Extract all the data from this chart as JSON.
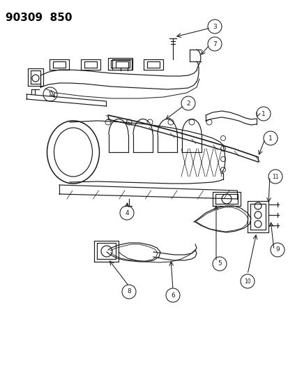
{
  "title": "90309  850",
  "bg_color": "#ffffff",
  "fig_width": 4.14,
  "fig_height": 5.33,
  "dpi": 100,
  "line_color": "#1a1a1a",
  "lw": 0.85,
  "callout_r": 0.013,
  "callout_fs": 6.5
}
